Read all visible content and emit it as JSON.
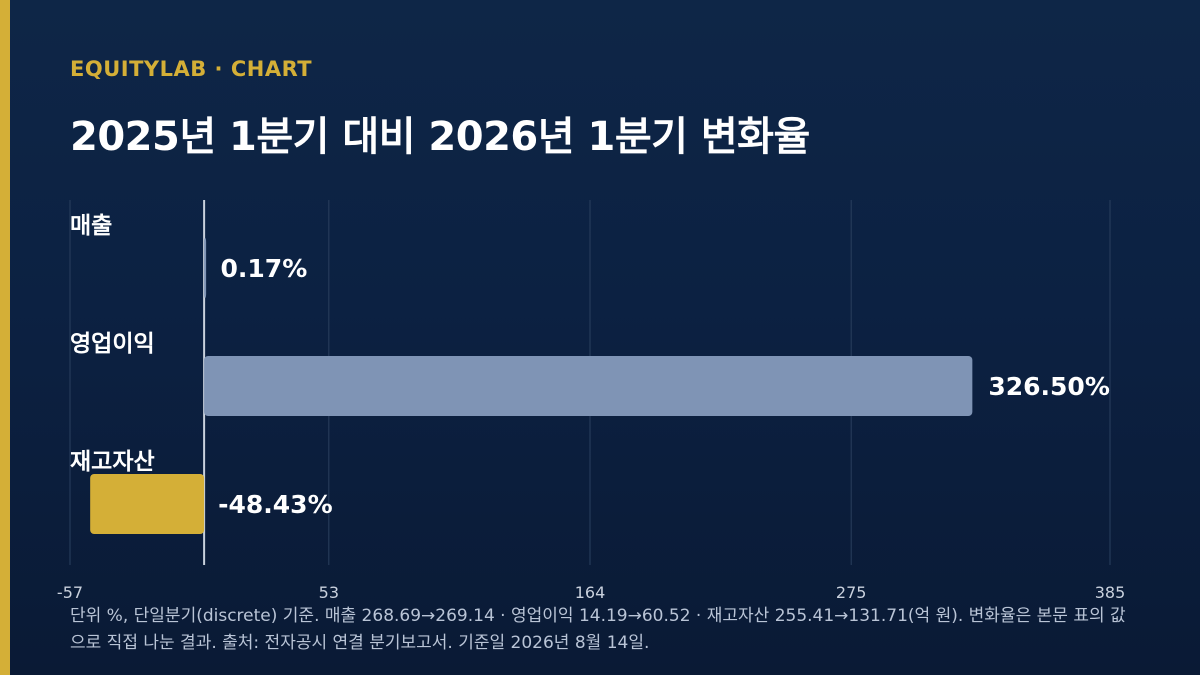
{
  "header": {
    "eyebrow": "EQUITYLAB · CHART",
    "title": "2025년 1분기 대비 2026년 1분기 변화율"
  },
  "colors": {
    "background": "#0c2142",
    "accent": "#d4af37",
    "positive_bar": "#7f94b5",
    "negative_bar": "#d4af37",
    "grid": "#2a3f5e",
    "zero_line": "#c9d1dd"
  },
  "chart_data": {
    "type": "bar",
    "orientation": "horizontal",
    "categories": [
      "매출",
      "영업이익",
      "재고자산"
    ],
    "values": [
      0.17,
      326.5,
      -48.43
    ],
    "value_labels": [
      "0.17%",
      "326.50%",
      "-48.43%"
    ],
    "x_ticks": [
      -57,
      53,
      164,
      275,
      385
    ],
    "xlim": [
      -57,
      385
    ],
    "grid": true,
    "legend": "none"
  },
  "footnote": "단위 %, 단일분기(discrete) 기준. 매출 268.69→269.14 · 영업이익 14.19→60.52 · 재고자산 255.41→131.71(억 원). 변화율은 본문 표의 값으로 직접 나눈 결과. 출처: 전자공시 연결 분기보고서. 기준일 2026년 8월 14일."
}
